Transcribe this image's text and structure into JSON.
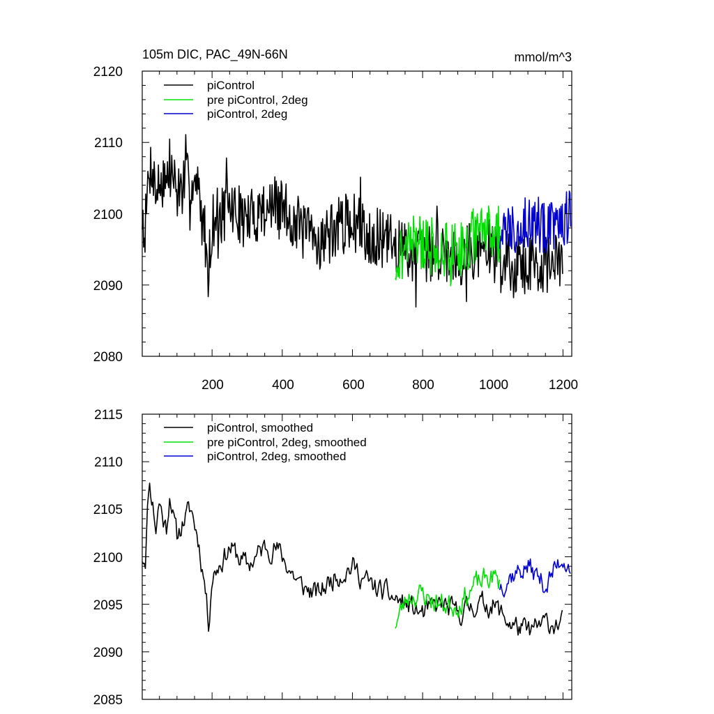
{
  "charts": [
    {
      "title": "105m DIC, PAC_49N-66N",
      "units": "mmol/m^3",
      "type": "line",
      "xlim": [
        1,
        1225
      ],
      "ylim": [
        2080,
        2120
      ],
      "x_ticks": [
        "200",
        "400",
        "600",
        "800",
        "1000",
        "1200"
      ],
      "y_ticks": [
        "2080",
        "2090",
        "2100",
        "2110",
        "2120"
      ],
      "show_x_tick_labels": true,
      "legend": [
        {
          "label": "piControl",
          "color": "#000000"
        },
        {
          "label": "pre piControl, 2deg",
          "color": "#00e000"
        },
        {
          "label": "piControl, 2deg",
          "color": "#0000d0"
        }
      ]
    },
    {
      "title": "",
      "units": "",
      "type": "line",
      "xlim": [
        1,
        1225
      ],
      "ylim": [
        2085,
        2115
      ],
      "x_ticks": [
        "200",
        "400",
        "600",
        "800",
        "1000",
        "1200"
      ],
      "y_ticks": [
        "2085",
        "2090",
        "2095",
        "2100",
        "2105",
        "2110",
        "2115"
      ],
      "show_x_tick_labels": false,
      "legend": [
        {
          "label": "piControl, smoothed",
          "color": "#000000"
        },
        {
          "label": "pre piControl, 2deg, smoothed",
          "color": "#00e000"
        },
        {
          "label": "piControl, 2deg, smoothed",
          "color": "#0000d0"
        }
      ]
    }
  ],
  "chart_data": [
    {
      "type": "line",
      "title": "105m DIC, PAC_49N-66N",
      "units": "mmol/m^3",
      "xlim": [
        1,
        1225
      ],
      "ylim": [
        2080,
        2120
      ],
      "series": [
        {
          "name": "piControl",
          "color": "#000000",
          "x_start": 1,
          "x_end": 1200,
          "anchor_x": [
            1,
            10,
            20,
            30,
            40,
            50,
            60,
            70,
            80,
            90,
            100,
            120,
            140,
            160,
            180,
            190,
            200,
            250,
            300,
            350,
            380,
            400,
            450,
            500,
            550,
            600,
            650,
            700,
            750,
            800,
            850,
            900,
            950,
            1000,
            1050,
            1100,
            1150,
            1200
          ],
          "anchor_y": [
            2100,
            2098,
            2106,
            2107,
            2103,
            2104,
            2106,
            2104,
            2107,
            2105,
            2103,
            2104,
            2105,
            2103,
            2097,
            2092,
            2099,
            2101,
            2099,
            2101,
            2101,
            2101,
            2098,
            2096,
            2098,
            2099,
            2097,
            2096,
            2095,
            2094,
            2095,
            2094,
            2095,
            2095,
            2093,
            2093,
            2093,
            2093
          ],
          "noise": 4.2,
          "ymin": 2083.5,
          "ymax": 2118,
          "seed": 7
        },
        {
          "name": "pre piControl, 2deg",
          "color": "#00e000",
          "x_start": 722,
          "x_end": 1020,
          "anchor_x": [
            722,
            760,
            800,
            850,
            900,
            950,
            1000,
            1020
          ],
          "anchor_y": [
            2093,
            2096,
            2096,
            2095,
            2095,
            2097,
            2098,
            2097
          ],
          "noise": 4.0,
          "ymin": 2084,
          "ymax": 2111,
          "seed": 21
        },
        {
          "name": "piControl, 2deg",
          "color": "#0000d0",
          "x_start": 1020,
          "x_end": 1222,
          "anchor_x": [
            1020,
            1050,
            1100,
            1150,
            1200,
            1222
          ],
          "anchor_y": [
            2097,
            2098,
            2099,
            2098,
            2099,
            2100
          ],
          "noise": 3.8,
          "ymin": 2084,
          "ymax": 2110.5,
          "seed": 33
        }
      ]
    },
    {
      "type": "line",
      "title": "",
      "xlim": [
        1,
        1225
      ],
      "ylim": [
        2085,
        2115
      ],
      "series": [
        {
          "name": "piControl, smoothed",
          "color": "#000000",
          "x_start": 1,
          "x_end": 1200,
          "anchor_x": [
            1,
            10,
            20,
            30,
            40,
            50,
            60,
            70,
            80,
            90,
            100,
            120,
            140,
            160,
            180,
            190,
            200,
            250,
            300,
            350,
            380,
            400,
            450,
            500,
            550,
            600,
            650,
            700,
            750,
            800,
            850,
            900,
            950,
            1000,
            1050,
            1100,
            1150,
            1200
          ],
          "anchor_y": [
            2100,
            2100,
            2108,
            2106,
            2103,
            2106,
            2104,
            2103,
            2107,
            2104,
            2102,
            2104,
            2105,
            2102,
            2097,
            2093,
            2098,
            2101,
            2099,
            2101,
            2101,
            2100,
            2097,
            2096,
            2098,
            2099,
            2097,
            2096,
            2095,
            2094,
            2095,
            2094,
            2095,
            2095,
            2093,
            2092,
            2093,
            2093
          ],
          "noise": 2.2,
          "ymin": 2087,
          "ymax": 2112,
          "seed": 11
        },
        {
          "name": "pre piControl, 2deg, smoothed",
          "color": "#00e000",
          "x_start": 722,
          "x_end": 1020,
          "anchor_x": [
            722,
            760,
            800,
            850,
            900,
            950,
            1000,
            1020
          ],
          "anchor_y": [
            2093,
            2096,
            2096,
            2095,
            2095,
            2097,
            2098,
            2097
          ],
          "noise": 2.3,
          "ymin": 2089.5,
          "ymax": 2104.7,
          "seed": 23
        },
        {
          "name": "piControl, 2deg, smoothed",
          "color": "#0000d0",
          "x_start": 1020,
          "x_end": 1222,
          "anchor_x": [
            1020,
            1050,
            1100,
            1150,
            1200,
            1222
          ],
          "anchor_y": [
            2097,
            2098,
            2099,
            2097,
            2100,
            2099
          ],
          "noise": 2.2,
          "ymin": 2089.5,
          "ymax": 2105.7,
          "seed": 37
        }
      ]
    }
  ]
}
